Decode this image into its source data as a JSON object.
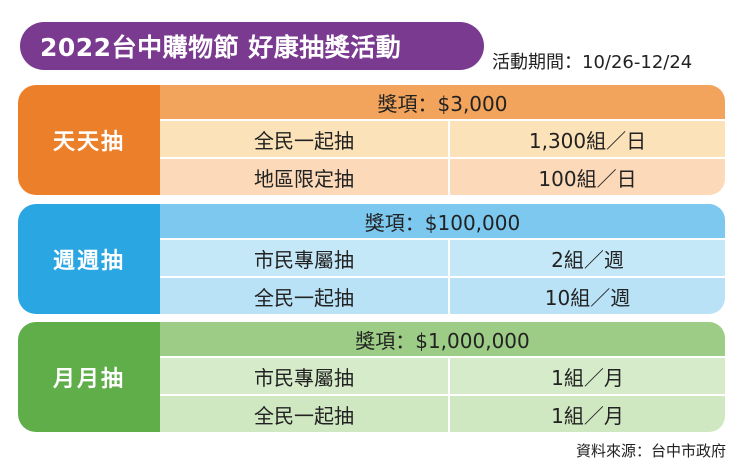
{
  "title": "2022台中購物節 好康抽獎活動",
  "period": "活動期間：10/26-12/24",
  "blocks": [
    {
      "label": "天天抽",
      "prize": "獎項：$3,000",
      "rows": [
        {
          "name": "全民一起抽",
          "quota": "1,300組／日"
        },
        {
          "name": "地區限定抽",
          "quota": "100組／日"
        }
      ]
    },
    {
      "label": "週週抽",
      "prize": "獎項：$100,000",
      "rows": [
        {
          "name": "市民專屬抽",
          "quota": "2組／週"
        },
        {
          "name": "全民一起抽",
          "quota": "10組／週"
        }
      ]
    },
    {
      "label": "月月抽",
      "prize": "獎項：$1,000,000",
      "rows": [
        {
          "name": "市民專屬抽",
          "quota": "1組／月"
        },
        {
          "name": "全民一起抽",
          "quota": "1組／月"
        }
      ]
    }
  ],
  "source": "資料來源：台中市政府",
  "colors": {
    "title": "#7a3a8f",
    "daily": "#ec7f2a",
    "weekly": "#2aa6e3",
    "monthly": "#5fae4a"
  }
}
